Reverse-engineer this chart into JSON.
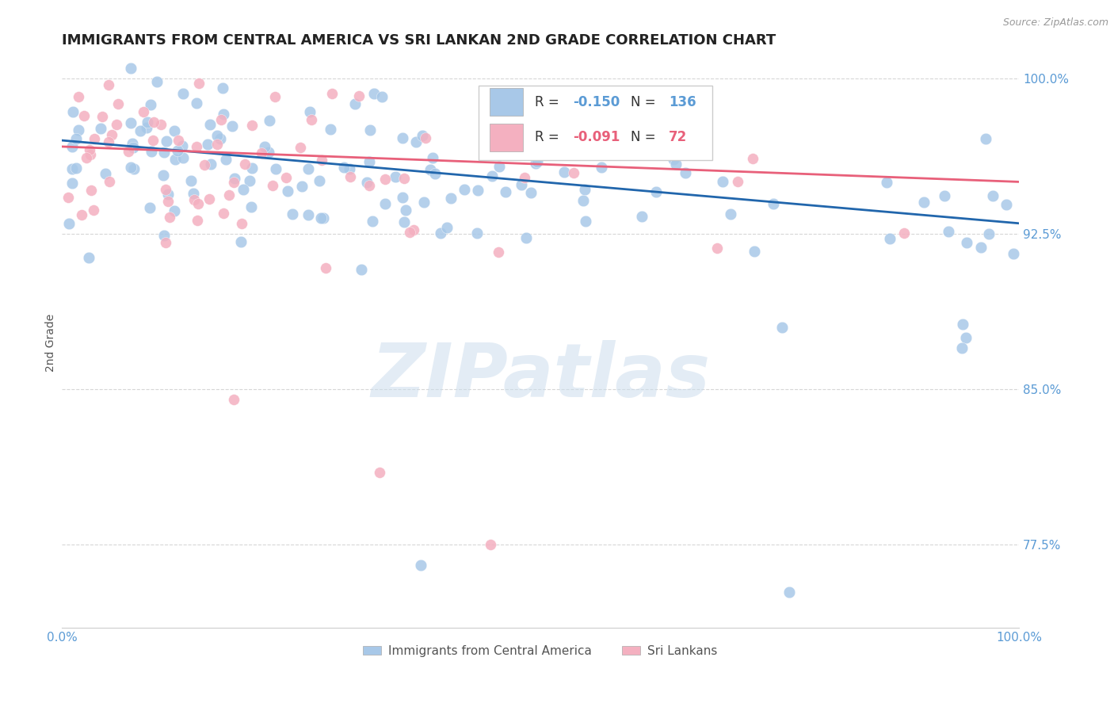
{
  "title": "IMMIGRANTS FROM CENTRAL AMERICA VS SRI LANKAN 2ND GRADE CORRELATION CHART",
  "source_text": "Source: ZipAtlas.com",
  "ylabel": "2nd Grade",
  "xlim": [
    0.0,
    1.0
  ],
  "ylim": [
    0.735,
    1.01
  ],
  "yticks": [
    0.775,
    0.85,
    0.925,
    1.0
  ],
  "ytick_labels": [
    "77.5%",
    "85.0%",
    "92.5%",
    "100.0%"
  ],
  "blue_R": -0.15,
  "blue_N": 136,
  "pink_R": -0.091,
  "pink_N": 72,
  "blue_color": "#a8c8e8",
  "pink_color": "#f4b0c0",
  "blue_line_color": "#2166ac",
  "pink_line_color": "#e8607a",
  "blue_legend_color": "#5b9bd5",
  "pink_legend_color": "#e8607a",
  "legend_label_blue": "Immigrants from Central America",
  "legend_label_pink": "Sri Lankans",
  "watermark": "ZIPatlas",
  "background_color": "#ffffff",
  "title_fontsize": 13,
  "tick_label_color": "#5b9bd5",
  "grid_color": "#cccccc",
  "blue_trend_start": 0.97,
  "blue_trend_end": 0.93,
  "pink_trend_start": 0.967,
  "pink_trend_end": 0.95
}
